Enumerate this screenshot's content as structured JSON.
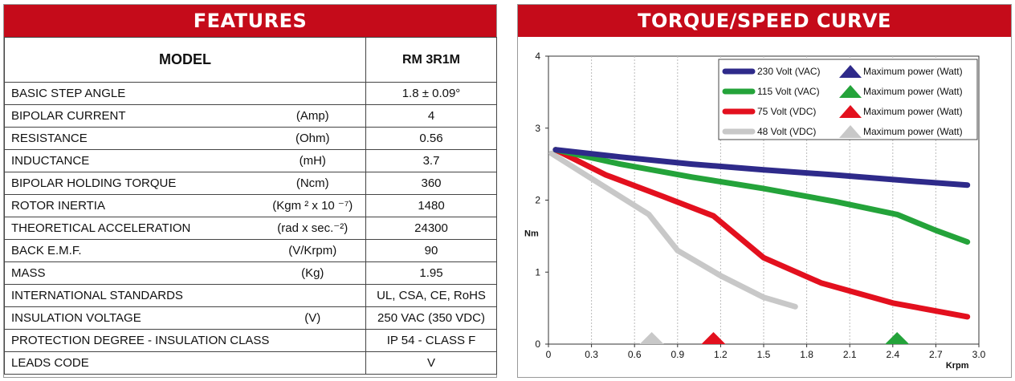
{
  "features": {
    "header": "FEATURES",
    "model_label": "MODEL",
    "model_value": "RM 3R1M",
    "rows": [
      {
        "param": "BASIC STEP ANGLE",
        "unit": "",
        "value": "1.8 ± 0.09°"
      },
      {
        "param": "BIPOLAR CURRENT",
        "unit": "(Amp)",
        "value": "4"
      },
      {
        "param": "RESISTANCE",
        "unit": "(Ohm)",
        "value": "0.56"
      },
      {
        "param": "INDUCTANCE",
        "unit": "(mH)",
        "value": "3.7"
      },
      {
        "param": "BIPOLAR HOLDING TORQUE",
        "unit": "(Ncm)",
        "value": "360"
      },
      {
        "param": "ROTOR INERTIA",
        "unit": "(Kgm ² x 10 ⁻⁷)",
        "value": "1480"
      },
      {
        "param": "THEORETICAL ACCELERATION",
        "unit": "(rad x sec.⁻²)",
        "value": "24300"
      },
      {
        "param": "BACK E.M.F.",
        "unit": "(V/Krpm)",
        "value": "90"
      },
      {
        "param": "MASS",
        "unit": "(Kg)",
        "value": "1.95"
      },
      {
        "param": "INTERNATIONAL STANDARDS",
        "unit": "",
        "value": "UL, CSA, CE, RoHS"
      },
      {
        "param": "INSULATION VOLTAGE",
        "unit": "(V)",
        "value": "250 VAC (350 VDC)"
      },
      {
        "param": "PROTECTION DEGREE - INSULATION CLASS",
        "unit": "",
        "value": "IP 54 - CLASS F"
      },
      {
        "param": "LEADS CODE",
        "unit": "",
        "value": "V"
      }
    ]
  },
  "chart_data": {
    "type": "line",
    "title": "TORQUE/SPEED CURVE",
    "xlabel": "Krpm",
    "ylabel": "Nm",
    "xlim": [
      0,
      3.0
    ],
    "ylim": [
      0,
      4
    ],
    "xticks": [
      "0",
      "0.3",
      "0.6",
      "0.9",
      "1.2",
      "1.5",
      "1.8",
      "2.1",
      "2.4",
      "2.7",
      "3.0"
    ],
    "yticks": [
      "0",
      "1",
      "2",
      "3",
      "4"
    ],
    "grid": "vertical",
    "legend_position": "top-right",
    "series": [
      {
        "name": "230 Volt (VAC)",
        "marker_label": "Maximum power (Watt)",
        "color": "#2e2a8a",
        "x": [
          0.05,
          0.5,
          1.0,
          1.5,
          2.0,
          2.5,
          2.92
        ],
        "y": [
          2.7,
          2.6,
          2.5,
          2.42,
          2.35,
          2.27,
          2.21
        ],
        "max_power_x": null
      },
      {
        "name": "115 Volt (VAC)",
        "marker_label": "Maximum power (Watt)",
        "color": "#24a33a",
        "x": [
          0.05,
          0.5,
          1.0,
          1.5,
          2.0,
          2.43,
          2.7,
          2.92
        ],
        "y": [
          2.7,
          2.5,
          2.32,
          2.16,
          1.98,
          1.8,
          1.58,
          1.42
        ],
        "max_power_x": 2.43
      },
      {
        "name": "75 Volt (VDC)",
        "marker_label": "Maximum power (Watt)",
        "color": "#e3101e",
        "x": [
          0.05,
          0.4,
          0.8,
          1.15,
          1.5,
          1.9,
          2.4,
          2.92
        ],
        "y": [
          2.7,
          2.35,
          2.05,
          1.78,
          1.2,
          0.85,
          0.57,
          0.38
        ],
        "max_power_x": 1.15
      },
      {
        "name": "48 Volt (VDC)",
        "marker_label": "Maximum power (Watt)",
        "color": "#c8c8c8",
        "x": [
          0.02,
          0.3,
          0.7,
          0.9,
          1.2,
          1.5,
          1.72
        ],
        "y": [
          2.65,
          2.3,
          1.8,
          1.3,
          0.95,
          0.65,
          0.52
        ],
        "max_power_x": 0.72
      }
    ]
  }
}
